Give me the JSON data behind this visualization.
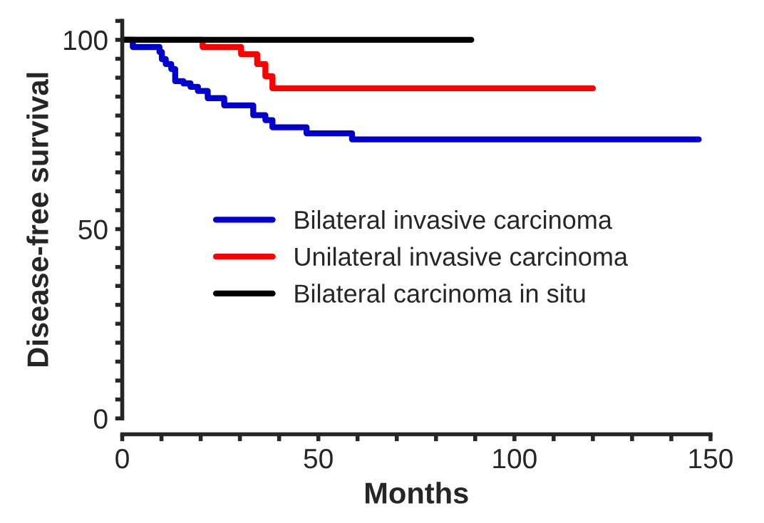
{
  "chart_data": {
    "type": "step",
    "xlabel": "Months",
    "ylabel": "Disease-free survival",
    "xlim": [
      0,
      150
    ],
    "ylim": [
      0,
      105
    ],
    "xticks": [
      0,
      {
        "value": 10,
        "label": null
      },
      {
        "value": 20,
        "label": null
      },
      {
        "value": 30,
        "label": null
      },
      {
        "value": 40,
        "label": null
      },
      50,
      {
        "value": 60,
        "label": null
      },
      {
        "value": 70,
        "label": null
      },
      {
        "value": 80,
        "label": null
      },
      {
        "value": 90,
        "label": null
      },
      100,
      {
        "value": 110,
        "label": null
      },
      {
        "value": 120,
        "label": null
      },
      {
        "value": 130,
        "label": null
      },
      {
        "value": 140,
        "label": null
      },
      150
    ],
    "yticks": [
      0,
      {
        "value": 5,
        "label": null
      },
      {
        "value": 10,
        "label": null
      },
      {
        "value": 15,
        "label": null
      },
      {
        "value": 20,
        "label": null
      },
      {
        "value": 25,
        "label": null
      },
      {
        "value": 30,
        "label": null
      },
      {
        "value": 35,
        "label": null
      },
      {
        "value": 40,
        "label": null
      },
      {
        "value": 45,
        "label": null
      },
      50,
      {
        "value": 55,
        "label": null
      },
      {
        "value": 60,
        "label": null
      },
      {
        "value": 65,
        "label": null
      },
      {
        "value": 70,
        "label": null
      },
      {
        "value": 75,
        "label": null
      },
      {
        "value": 80,
        "label": null
      },
      {
        "value": 85,
        "label": null
      },
      {
        "value": 90,
        "label": null
      },
      {
        "value": 95,
        "label": null
      },
      100,
      {
        "value": 105,
        "label": null
      }
    ],
    "grid": false,
    "legend": "bottom",
    "line_style": "solid",
    "series": [
      {
        "name": "Bilateral invasive carcinoma",
        "color": "#0000cc",
        "x": [
          0,
          2.7,
          9.5,
          10.1,
          11.1,
          12.5,
          13.5,
          15.6,
          17.4,
          19.3,
          21.8,
          26.0,
          33.4,
          36.5,
          38.3,
          47.0,
          58.6,
          147
        ],
        "values": [
          100,
          98.1,
          96.8,
          94.9,
          93.6,
          92.3,
          89.1,
          88.5,
          87.6,
          86.5,
          84.6,
          82.7,
          80.1,
          78.8,
          76.9,
          75.3,
          73.7,
          73.7
        ]
      },
      {
        "name": "Unilateral invasive carcinoma",
        "color": "#ff0000",
        "x": [
          0,
          20.5,
          30.3,
          34.4,
          36.5,
          38.3,
          120
        ],
        "values": [
          100,
          98.1,
          96.2,
          93.6,
          90.4,
          87.2,
          87.2
        ]
      },
      {
        "name": "Bilateral carcinoma in situ",
        "color": "#000000",
        "x": [
          0,
          89
        ],
        "values": [
          100,
          100
        ]
      }
    ]
  }
}
